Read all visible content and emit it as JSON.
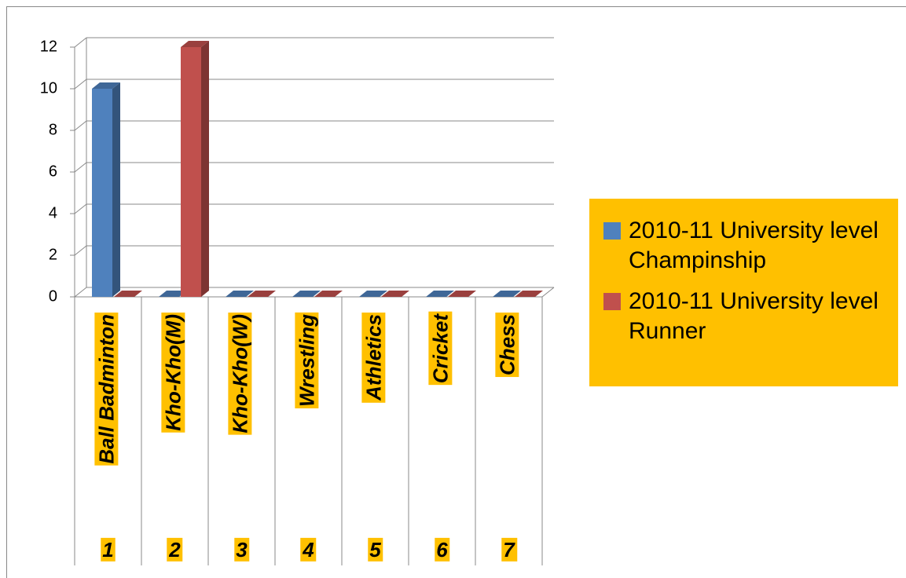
{
  "chart_data": {
    "type": "bar3d",
    "categories": [
      "Ball Badminton",
      "Kho-Kho(M)",
      "Kho-Kho(W)",
      "Wrestling",
      "Athletics",
      "Cricket",
      "Chess"
    ],
    "category_numbers": [
      "1",
      "2",
      "3",
      "4",
      "5",
      "6",
      "7"
    ],
    "series": [
      {
        "name": "2010-11 University level Champinship",
        "color": "#4f81bd",
        "values": [
          10,
          0,
          0,
          0,
          0,
          0,
          0
        ]
      },
      {
        "name": "2010-11 University level Runner",
        "color": "#c0504d",
        "values": [
          0,
          12,
          0,
          0,
          0,
          0,
          0
        ]
      }
    ],
    "ylim": [
      0,
      12
    ],
    "yticks": [
      0,
      2,
      4,
      6,
      8,
      10,
      12
    ],
    "grid": true,
    "legend": "right",
    "label_background": "#ffc000"
  }
}
